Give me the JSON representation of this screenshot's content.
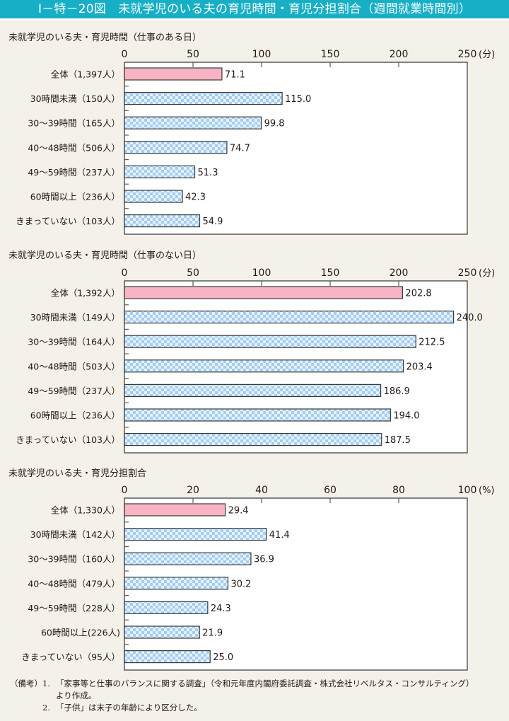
{
  "header": {
    "title": "Ⅰ－特－20図　未就学児のいる夫の育児時間・育児分担割合（週間就業時間別）"
  },
  "colors": {
    "header_bg": "#17afc6",
    "total_bar": "#f8b4c4",
    "pattern_dark": "#a4cdf0",
    "pattern_light": "#e6f2fc",
    "plot_bg": "#ffffff",
    "page_bg": "#f4f1ea"
  },
  "chart_data": [
    {
      "type": "bar",
      "orientation": "horizontal",
      "title": "未就学児のいる夫・育児時間（仕事のある日）",
      "unit_label": "(分)",
      "xlim": [
        0,
        250
      ],
      "ticks": [
        "0",
        "50",
        "100",
        "150",
        "200",
        "250"
      ],
      "tick_values": [
        0,
        50,
        100,
        150,
        200,
        250
      ],
      "categories": [
        "全体（1,397人）",
        "30時間未満（150人）",
        "30～39時間（165人）",
        "40～48時間（506人）",
        "49～59時間（237人）",
        "60時間以上（236人）",
        "きまっていない（103人）"
      ],
      "values": [
        71.1,
        115.0,
        99.8,
        74.7,
        51.3,
        42.3,
        54.9
      ],
      "value_labels": [
        "71.1",
        "115.0",
        "99.8",
        "74.7",
        "51.3",
        "42.3",
        "54.9"
      ],
      "grid": false,
      "legend": "none"
    },
    {
      "type": "bar",
      "orientation": "horizontal",
      "title": "未就学児のいる夫・育児時間（仕事のない日）",
      "unit_label": "(分)",
      "xlim": [
        0,
        250
      ],
      "ticks": [
        "0",
        "50",
        "100",
        "150",
        "200",
        "250"
      ],
      "tick_values": [
        0,
        50,
        100,
        150,
        200,
        250
      ],
      "categories": [
        "全体（1,392人）",
        "30時間未満（149人）",
        "30～39時間（164人）",
        "40～48時間（503人）",
        "49～59時間（237人）",
        "60時間以上（236人）",
        "きまっていない（103人）"
      ],
      "values": [
        202.8,
        240.0,
        212.5,
        203.4,
        186.9,
        194.0,
        187.5
      ],
      "value_labels": [
        "202.8",
        "240.0",
        "212.5",
        "203.4",
        "186.9",
        "194.0",
        "187.5"
      ],
      "grid": false,
      "legend": "none"
    },
    {
      "type": "bar",
      "orientation": "horizontal",
      "title": "未就学児のいる夫・育児分担割合",
      "unit_label": "(%)",
      "xlim": [
        0,
        100
      ],
      "ticks": [
        "0",
        "20",
        "40",
        "60",
        "80",
        "100"
      ],
      "tick_values": [
        0,
        20,
        40,
        60,
        80,
        100
      ],
      "categories": [
        "全体（1,330人）",
        "30時間未満（142人）",
        "30～39時間（160人）",
        "40～48時間（479人）",
        "49～59時間（228人）",
        "60時間以上(226人)",
        "きまっていない（95人）"
      ],
      "values": [
        29.4,
        41.4,
        36.9,
        30.2,
        24.3,
        21.9,
        25.0
      ],
      "value_labels": [
        "29.4",
        "41.4",
        "36.9",
        "30.2",
        "24.3",
        "21.9",
        "25.0"
      ],
      "grid": false,
      "legend": "none"
    }
  ],
  "notes": {
    "label": "（備考）",
    "items": [
      {
        "number": "1.",
        "text": "「家事等と仕事のバランスに関する調査」（令和元年度内閣府委託調査・株式会社リベルタス・コンサルティング）",
        "continuation": "より作成。"
      },
      {
        "number": "2.",
        "text": "「子供」は末子の年齢により区分した。"
      }
    ]
  }
}
